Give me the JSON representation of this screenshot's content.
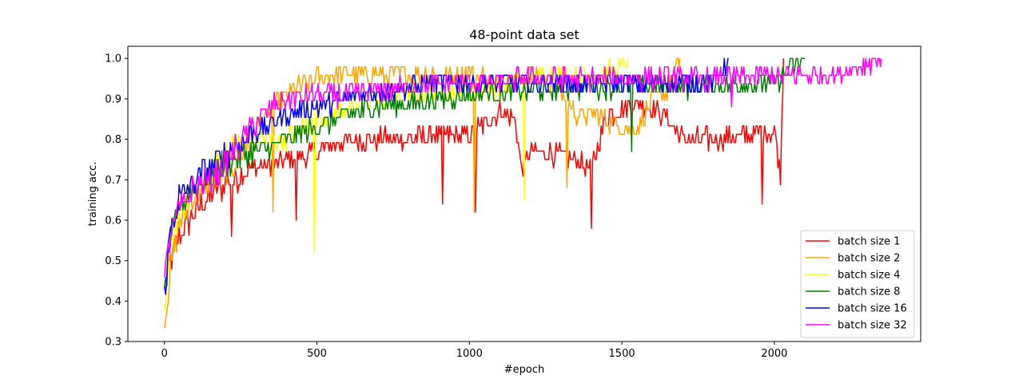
{
  "chart_data": {
    "type": "line",
    "title": "48-point data set",
    "xlabel": "#epoch",
    "ylabel": "training acc.",
    "xlim": [
      -120,
      2480
    ],
    "ylim": [
      0.3,
      1.03
    ],
    "xticks": [
      0,
      500,
      1000,
      1500,
      2000
    ],
    "yticks": [
      0.3,
      0.4,
      0.5,
      0.6,
      0.7,
      0.8,
      0.9,
      1.0
    ],
    "xtick_labels": [
      "0",
      "500",
      "1000",
      "1500",
      "2000"
    ],
    "ytick_labels": [
      "0.3",
      "0.4",
      "0.5",
      "0.6",
      "0.7",
      "0.8",
      "0.9",
      "1.0"
    ],
    "legend_position": "lower-right",
    "grid": false,
    "series": [
      {
        "name": "batch size 1",
        "color": "#ff0000",
        "x": [
          0,
          20,
          50,
          100,
          150,
          200,
          250,
          300,
          400,
          500,
          600,
          700,
          800,
          900,
          1000,
          1050,
          1100,
          1150,
          1170,
          1200,
          1300,
          1400,
          1450,
          1500,
          1550,
          1600,
          1650,
          1700,
          1800,
          1900,
          1950,
          2000,
          2020,
          2030
        ],
        "values": [
          0.42,
          0.5,
          0.56,
          0.62,
          0.66,
          0.69,
          0.71,
          0.73,
          0.75,
          0.77,
          0.8,
          0.8,
          0.8,
          0.81,
          0.81,
          0.84,
          0.87,
          0.85,
          0.72,
          0.77,
          0.76,
          0.73,
          0.86,
          0.87,
          0.89,
          0.88,
          0.85,
          0.8,
          0.8,
          0.81,
          0.82,
          0.82,
          0.72,
          1.0
        ],
        "low_spikes": [
          [
            220,
            0.56
          ],
          [
            430,
            0.6
          ],
          [
            910,
            0.64
          ],
          [
            1020,
            0.62
          ],
          [
            1400,
            0.58
          ],
          [
            1960,
            0.64
          ]
        ]
      },
      {
        "name": "batch size 2",
        "color": "#ffa500",
        "x": [
          0,
          20,
          50,
          100,
          150,
          200,
          250,
          300,
          350,
          400,
          450,
          500,
          550,
          600,
          700,
          800,
          900,
          1000,
          1050,
          1100,
          1150,
          1200,
          1300,
          1350,
          1400,
          1450,
          1500,
          1550,
          1600,
          1650,
          1690
        ],
        "values": [
          0.34,
          0.48,
          0.6,
          0.66,
          0.69,
          0.72,
          0.76,
          0.82,
          0.87,
          0.91,
          0.93,
          0.95,
          0.96,
          0.96,
          0.96,
          0.96,
          0.96,
          0.97,
          0.95,
          0.93,
          0.95,
          0.96,
          0.92,
          0.86,
          0.86,
          0.85,
          0.83,
          0.83,
          0.9,
          0.92,
          1.0
        ],
        "low_spikes": [
          [
            355,
            0.62
          ],
          [
            1015,
            0.62
          ],
          [
            1320,
            0.68
          ]
        ]
      },
      {
        "name": "batch size 4",
        "color": "#ffff00",
        "x": [
          0,
          20,
          50,
          100,
          150,
          200,
          250,
          300,
          350,
          400,
          450,
          500,
          600,
          700,
          800,
          900,
          1000,
          1100,
          1200,
          1300,
          1400,
          1500,
          1520
        ],
        "values": [
          0.38,
          0.55,
          0.63,
          0.68,
          0.72,
          0.76,
          0.79,
          0.8,
          0.8,
          0.8,
          0.83,
          0.85,
          0.88,
          0.9,
          0.91,
          0.92,
          0.92,
          0.93,
          0.95,
          0.96,
          0.96,
          0.97,
          1.0
        ],
        "low_spikes": [
          [
            490,
            0.52
          ],
          [
            1180,
            0.65
          ]
        ]
      },
      {
        "name": "batch size 8",
        "color": "#008000",
        "x": [
          0,
          20,
          50,
          100,
          150,
          200,
          250,
          300,
          400,
          500,
          600,
          700,
          800,
          900,
          1000,
          1200,
          1400,
          1600,
          1800,
          2000,
          2100
        ],
        "values": [
          0.42,
          0.55,
          0.64,
          0.68,
          0.71,
          0.74,
          0.76,
          0.77,
          0.8,
          0.83,
          0.86,
          0.88,
          0.89,
          0.9,
          0.91,
          0.92,
          0.93,
          0.93,
          0.93,
          0.94,
          1.0
        ],
        "low_spikes": [
          [
            1530,
            0.77
          ]
        ]
      },
      {
        "name": "batch size 16",
        "color": "#0000ff",
        "x": [
          0,
          20,
          50,
          100,
          150,
          200,
          250,
          300,
          350,
          400,
          500,
          600,
          700,
          800,
          900,
          1000,
          1200,
          1400,
          1600,
          1800,
          1850
        ],
        "values": [
          0.42,
          0.58,
          0.66,
          0.7,
          0.73,
          0.76,
          0.79,
          0.82,
          0.84,
          0.86,
          0.88,
          0.9,
          0.92,
          0.93,
          0.94,
          0.94,
          0.94,
          0.94,
          0.94,
          0.94,
          1.0
        ],
        "low_spikes": []
      },
      {
        "name": "batch size 32",
        "color": "#ff00ff",
        "x": [
          0,
          20,
          50,
          100,
          150,
          200,
          250,
          300,
          350,
          400,
          500,
          600,
          700,
          800,
          1000,
          1200,
          1400,
          1600,
          1800,
          2000,
          2200,
          2350
        ],
        "values": [
          0.45,
          0.57,
          0.63,
          0.68,
          0.7,
          0.74,
          0.79,
          0.84,
          0.88,
          0.9,
          0.91,
          0.91,
          0.92,
          0.93,
          0.94,
          0.95,
          0.95,
          0.95,
          0.95,
          0.96,
          0.96,
          1.0
        ],
        "low_spikes": [
          [
            1860,
            0.88
          ]
        ]
      }
    ]
  }
}
